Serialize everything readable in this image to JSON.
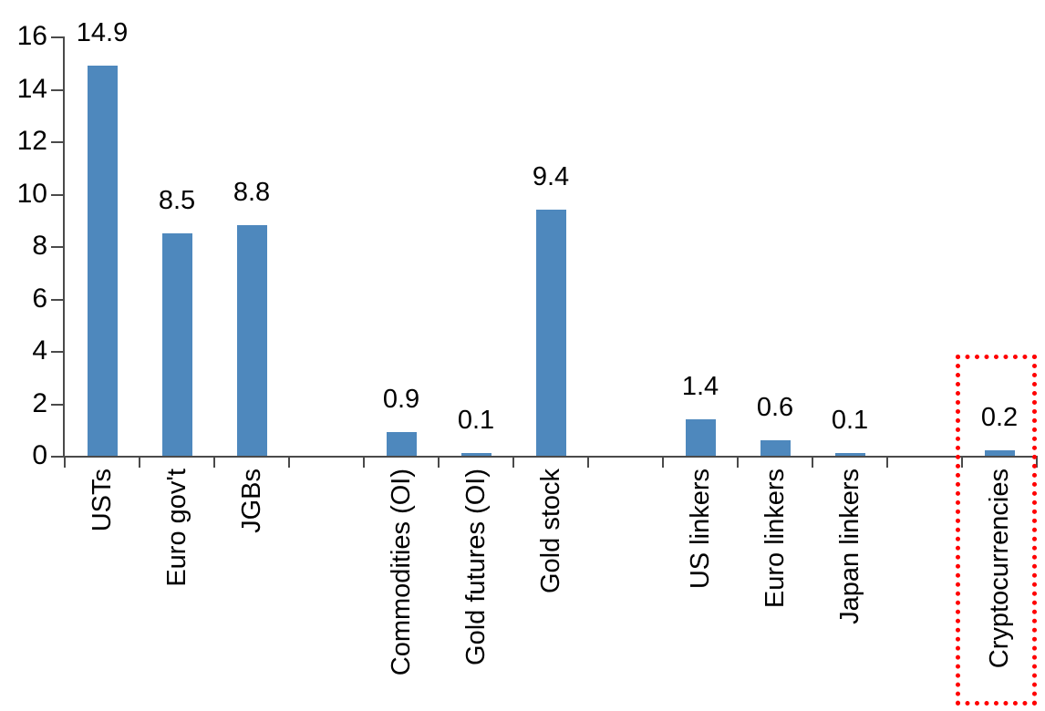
{
  "chart_data": {
    "type": "bar",
    "title": "",
    "xlabel": "",
    "ylabel": "",
    "categories": [
      "USTs",
      "Euro gov't",
      "JGBs",
      "",
      "Commodities (OI)",
      "Gold futures (OI)",
      "Gold stock",
      "",
      "US linkers",
      "Euro linkers",
      "Japan linkers",
      "",
      "Cryptocurrencies"
    ],
    "values": [
      14.9,
      8.5,
      8.8,
      null,
      0.9,
      0.1,
      9.4,
      null,
      1.4,
      0.6,
      0.1,
      null,
      0.2
    ],
    "value_labels": [
      "14.9",
      "8.5",
      "8.8",
      "",
      "0.9",
      "0.1",
      "9.4",
      "",
      "1.4",
      "0.6",
      "0.1",
      "",
      "0.2"
    ],
    "yticks": [
      0,
      2,
      4,
      6,
      8,
      10,
      12,
      14,
      16
    ],
    "ylim": [
      0,
      16
    ],
    "grid": false,
    "legend": null,
    "bar_color": "#4e88bd",
    "axis_color": "#4a4a4a",
    "text_color": "#000000",
    "highlight": {
      "category": "Cryptocurrencies",
      "box_color": "#ff0000",
      "box_style": "dotted"
    }
  }
}
